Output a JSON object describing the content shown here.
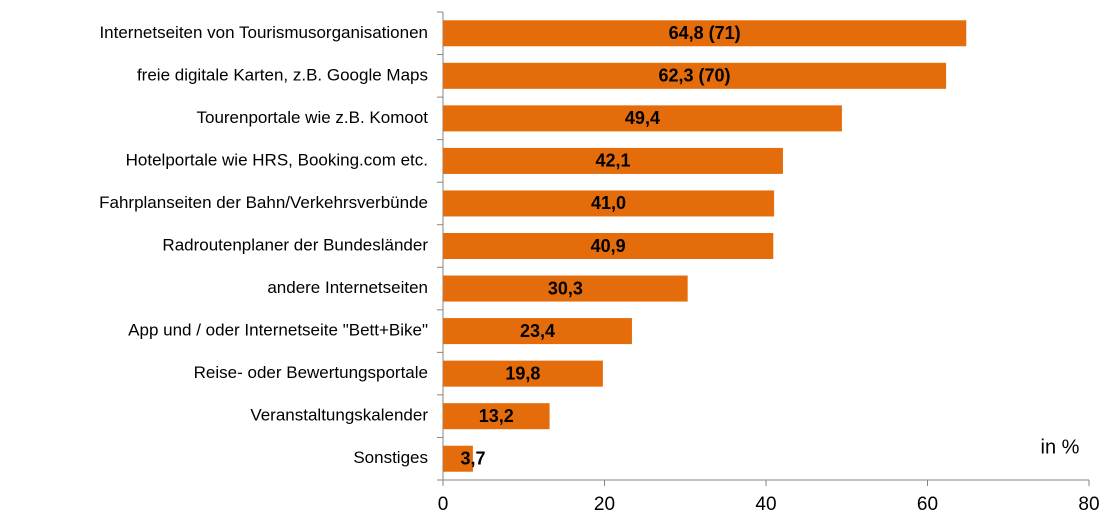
{
  "chart_data": {
    "type": "bar",
    "orientation": "horizontal",
    "categories": [
      "Internetseiten von Tourismusorganisationen",
      "freie digitale Karten, z.B. Google Maps",
      "Tourenportale wie z.B. Komoot",
      "Hotelportale wie HRS, Booking.com etc.",
      "Fahrplanseiten der Bahn/Verkehrsverbünde",
      "Radroutenplaner der Bundesländer",
      "andere Internetseiten",
      "App und / oder Internetseite \"Bett+Bike\"",
      "Reise- oder Bewertungsportale",
      "Veranstaltungskalender",
      "Sonstiges"
    ],
    "values": [
      64.8,
      62.3,
      49.4,
      42.1,
      41.0,
      40.9,
      30.3,
      23.4,
      19.8,
      13.2,
      3.7
    ],
    "value_labels": [
      "64,8 (71)",
      "62,3 (70)",
      "49,4",
      "42,1",
      "41,0",
      "40,9",
      "30,3",
      "23,4",
      "19,8",
      "13,2",
      "3,7"
    ],
    "color": "#e46c0a",
    "xlim": [
      0,
      80
    ],
    "xticks": [
      0,
      20,
      40,
      60,
      80
    ],
    "annotation": "in %"
  }
}
